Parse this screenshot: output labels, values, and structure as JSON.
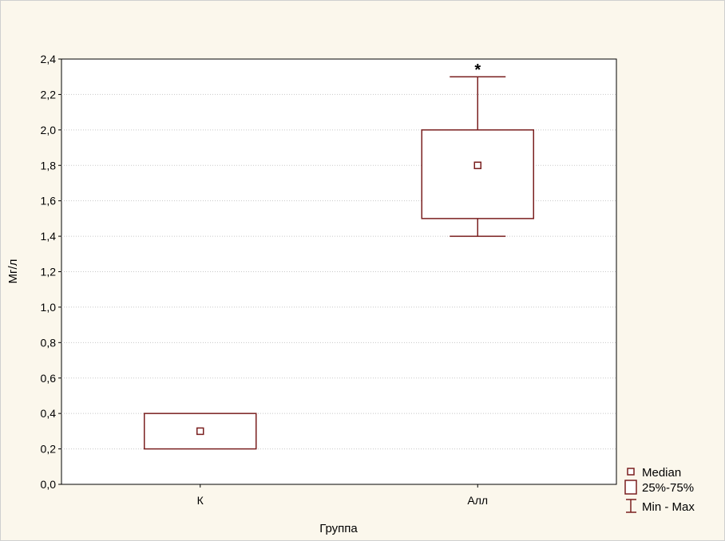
{
  "chart_data": {
    "type": "boxplot",
    "xlabel": "Группа",
    "ylabel": "Мг/л",
    "ylim": [
      0,
      2.4
    ],
    "y_ticks": [
      "0,0",
      "0,2",
      "0,4",
      "0,6",
      "0,8",
      "1,0",
      "1,2",
      "1,4",
      "1,6",
      "1,8",
      "2,0",
      "2,2",
      "2,4"
    ],
    "y_tick_values": [
      0,
      0.2,
      0.4,
      0.6,
      0.8,
      1.0,
      1.2,
      1.4,
      1.6,
      1.8,
      2.0,
      2.2,
      2.4
    ],
    "categories": [
      "К",
      "Алл"
    ],
    "boxes": [
      {
        "category": "К",
        "median": 0.3,
        "q1": 0.2,
        "q3": 0.4,
        "min": 0.2,
        "max": 0.4,
        "annotation": ""
      },
      {
        "category": "Алл",
        "median": 1.8,
        "q1": 1.5,
        "q3": 2.0,
        "min": 1.4,
        "max": 2.3,
        "annotation": "*"
      }
    ],
    "grid": true,
    "legend_placement": "bottom-right",
    "legend": [
      "Median",
      "25%-75%",
      "Min - Max"
    ],
    "colors": {
      "box": "#7a1f1f",
      "grid": "#c8c8c8",
      "background": "#fbf7ec",
      "plot_background": "#ffffff"
    }
  }
}
